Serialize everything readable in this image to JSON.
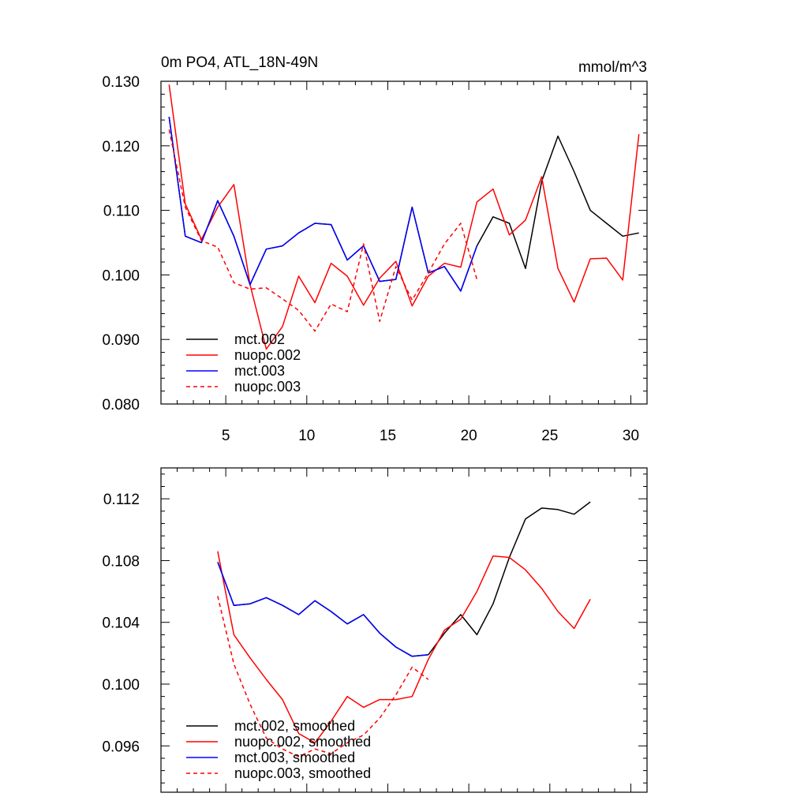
{
  "chart_data": [
    {
      "type": "line",
      "title": "0m PO4, ATL_18N-49N",
      "units": "mmol/m^3",
      "xlim": [
        1,
        31
      ],
      "ylim": [
        0.08,
        0.13
      ],
      "xticks": [
        5,
        10,
        15,
        20,
        25,
        30
      ],
      "xtick_labels": [
        "5",
        "10",
        "15",
        "20",
        "25",
        "30"
      ],
      "yticks": [
        0.08,
        0.09,
        0.1,
        0.11,
        0.12,
        0.13
      ],
      "ytick_labels": [
        "0.080",
        "0.090",
        "0.100",
        "0.110",
        "0.120",
        "0.130"
      ],
      "legend_position": "bottom-left",
      "series": [
        {
          "name": "mct.002",
          "color": "#000000",
          "dash": "solid",
          "x": [
            1.5,
            2.5,
            3.5,
            4.5,
            5.5,
            6.5,
            7.5,
            8.5,
            9.5,
            10.5,
            11.5,
            12.5,
            13.5,
            14.5,
            15.5,
            16.5,
            17.5,
            18.5,
            19.5,
            20.5,
            21.5,
            22.5,
            23.5,
            24.5,
            25.5,
            26.5,
            27.5,
            28.5,
            29.5,
            30.5
          ],
          "y": [
            0.1245,
            0.106,
            0.105,
            0.1115,
            0.106,
            0.0985,
            0.104,
            0.1045,
            0.1065,
            0.108,
            0.1078,
            0.1023,
            0.1045,
            0.099,
            0.0993,
            0.1105,
            0.1003,
            0.1013,
            0.0975,
            0.1045,
            0.109,
            0.108,
            0.101,
            0.1145,
            0.1215,
            0.116,
            0.11,
            0.108,
            0.106,
            0.1065
          ]
        },
        {
          "name": "nuopc.002",
          "color": "#ff0000",
          "dash": "solid",
          "x": [
            1.5,
            2.5,
            3.5,
            4.5,
            5.5,
            6.5,
            7.5,
            8.5,
            9.5,
            10.5,
            11.5,
            12.5,
            13.5,
            14.5,
            15.5,
            16.5,
            17.5,
            18.5,
            19.5,
            20.5,
            21.5,
            22.5,
            23.5,
            24.5,
            25.5,
            26.5,
            27.5,
            28.5,
            29.5,
            30.5
          ],
          "y": [
            0.1295,
            0.111,
            0.1055,
            0.1105,
            0.114,
            0.0985,
            0.0885,
            0.092,
            0.0998,
            0.0957,
            0.1018,
            0.0998,
            0.0953,
            0.0995,
            0.1021,
            0.0952,
            0.0998,
            0.1018,
            0.1012,
            0.1113,
            0.1133,
            0.1062,
            0.1085,
            0.1152,
            0.101,
            0.0958,
            0.1025,
            0.1026,
            0.0992,
            0.1218
          ]
        },
        {
          "name": "mct.003",
          "color": "#0000ff",
          "dash": "solid",
          "x": [
            1.5,
            2.5,
            3.5,
            4.5,
            5.5,
            6.5,
            7.5,
            8.5,
            9.5,
            10.5,
            11.5,
            12.5,
            13.5,
            14.5,
            15.5,
            16.5,
            17.5,
            18.5,
            19.5,
            20.5
          ],
          "y": [
            0.1245,
            0.106,
            0.105,
            0.1115,
            0.106,
            0.0985,
            0.104,
            0.1045,
            0.1065,
            0.108,
            0.1078,
            0.1023,
            0.1045,
            0.099,
            0.0993,
            0.1105,
            0.1003,
            0.1013,
            0.0975,
            0.1045
          ]
        },
        {
          "name": "nuopc.003",
          "color": "#ff0000",
          "dash": "dashed",
          "x": [
            1.5,
            2.5,
            3.5,
            4.5,
            5.5,
            6.5,
            7.5,
            8.5,
            9.5,
            10.5,
            11.5,
            12.5,
            13.5,
            14.5,
            15.5,
            16.5,
            17.5,
            18.5,
            19.5,
            20.5
          ],
          "y": [
            0.1225,
            0.1105,
            0.1053,
            0.1043,
            0.0988,
            0.0978,
            0.098,
            0.0963,
            0.0945,
            0.0913,
            0.0955,
            0.0943,
            0.1048,
            0.0928,
            0.1013,
            0.0961,
            0.1003,
            0.1048,
            0.108,
            0.0993
          ]
        }
      ]
    },
    {
      "type": "line",
      "xlim": [
        1,
        31
      ],
      "ylim": [
        0.093,
        0.114
      ],
      "xticks": [
        5,
        10,
        15,
        20,
        25,
        30
      ],
      "yticks": [
        0.096,
        0.1,
        0.104,
        0.108,
        0.112
      ],
      "ytick_labels": [
        "0.096",
        "0.100",
        "0.104",
        "0.108",
        "0.112"
      ],
      "legend_position": "bottom-left",
      "series": [
        {
          "name": "mct.002, smoothed",
          "color": "#000000",
          "dash": "solid",
          "x": [
            4.5,
            5.5,
            6.5,
            7.5,
            8.5,
            9.5,
            10.5,
            11.5,
            12.5,
            13.5,
            14.5,
            15.5,
            16.5,
            17.5,
            18.5,
            19.5,
            20.5,
            21.5,
            22.5,
            23.5,
            24.5,
            25.5,
            26.5,
            27.5
          ],
          "y": [
            0.1079,
            0.1051,
            0.1052,
            0.1056,
            0.1051,
            0.1045,
            0.1054,
            0.1047,
            0.1039,
            0.1045,
            0.1033,
            0.1024,
            0.1018,
            0.1019,
            0.1033,
            0.1045,
            0.1032,
            0.1052,
            0.1082,
            0.1107,
            0.1114,
            0.1113,
            0.111,
            0.1118
          ]
        },
        {
          "name": "nuopc.002, smoothed",
          "color": "#ff0000",
          "dash": "solid",
          "x": [
            4.5,
            5.5,
            6.5,
            7.5,
            8.5,
            9.5,
            10.5,
            11.5,
            12.5,
            13.5,
            14.5,
            15.5,
            16.5,
            17.5,
            18.5,
            19.5,
            20.5,
            21.5,
            22.5,
            23.5,
            24.5,
            25.5,
            26.5,
            27.5
          ],
          "y": [
            0.1086,
            0.1032,
            0.1017,
            0.1003,
            0.099,
            0.0968,
            0.0962,
            0.0976,
            0.0992,
            0.0985,
            0.099,
            0.099,
            0.0992,
            0.1016,
            0.1035,
            0.1042,
            0.106,
            0.1083,
            0.1082,
            0.1074,
            0.1062,
            0.1047,
            0.1036,
            0.1055
          ]
        },
        {
          "name": "mct.003, smoothed",
          "color": "#0000ff",
          "dash": "solid",
          "x": [
            4.5,
            5.5,
            6.5,
            7.5,
            8.5,
            9.5,
            10.5,
            11.5,
            12.5,
            13.5,
            14.5,
            15.5,
            16.5,
            17.5
          ],
          "y": [
            0.1079,
            0.1051,
            0.1052,
            0.1056,
            0.1051,
            0.1045,
            0.1054,
            0.1047,
            0.1039,
            0.1045,
            0.1033,
            0.1024,
            0.1018,
            0.1019
          ]
        },
        {
          "name": "nuopc.003, smoothed",
          "color": "#ff0000",
          "dash": "dashed",
          "x": [
            4.5,
            5.5,
            6.5,
            7.5,
            8.5,
            9.5,
            10.5,
            11.5,
            12.5,
            13.5,
            14.5,
            15.5,
            16.5,
            17.5
          ],
          "y": [
            0.1057,
            0.1013,
            0.0987,
            0.0965,
            0.0958,
            0.0953,
            0.0958,
            0.0955,
            0.0962,
            0.0967,
            0.0978,
            0.0993,
            0.1011,
            0.1003
          ]
        }
      ]
    }
  ]
}
